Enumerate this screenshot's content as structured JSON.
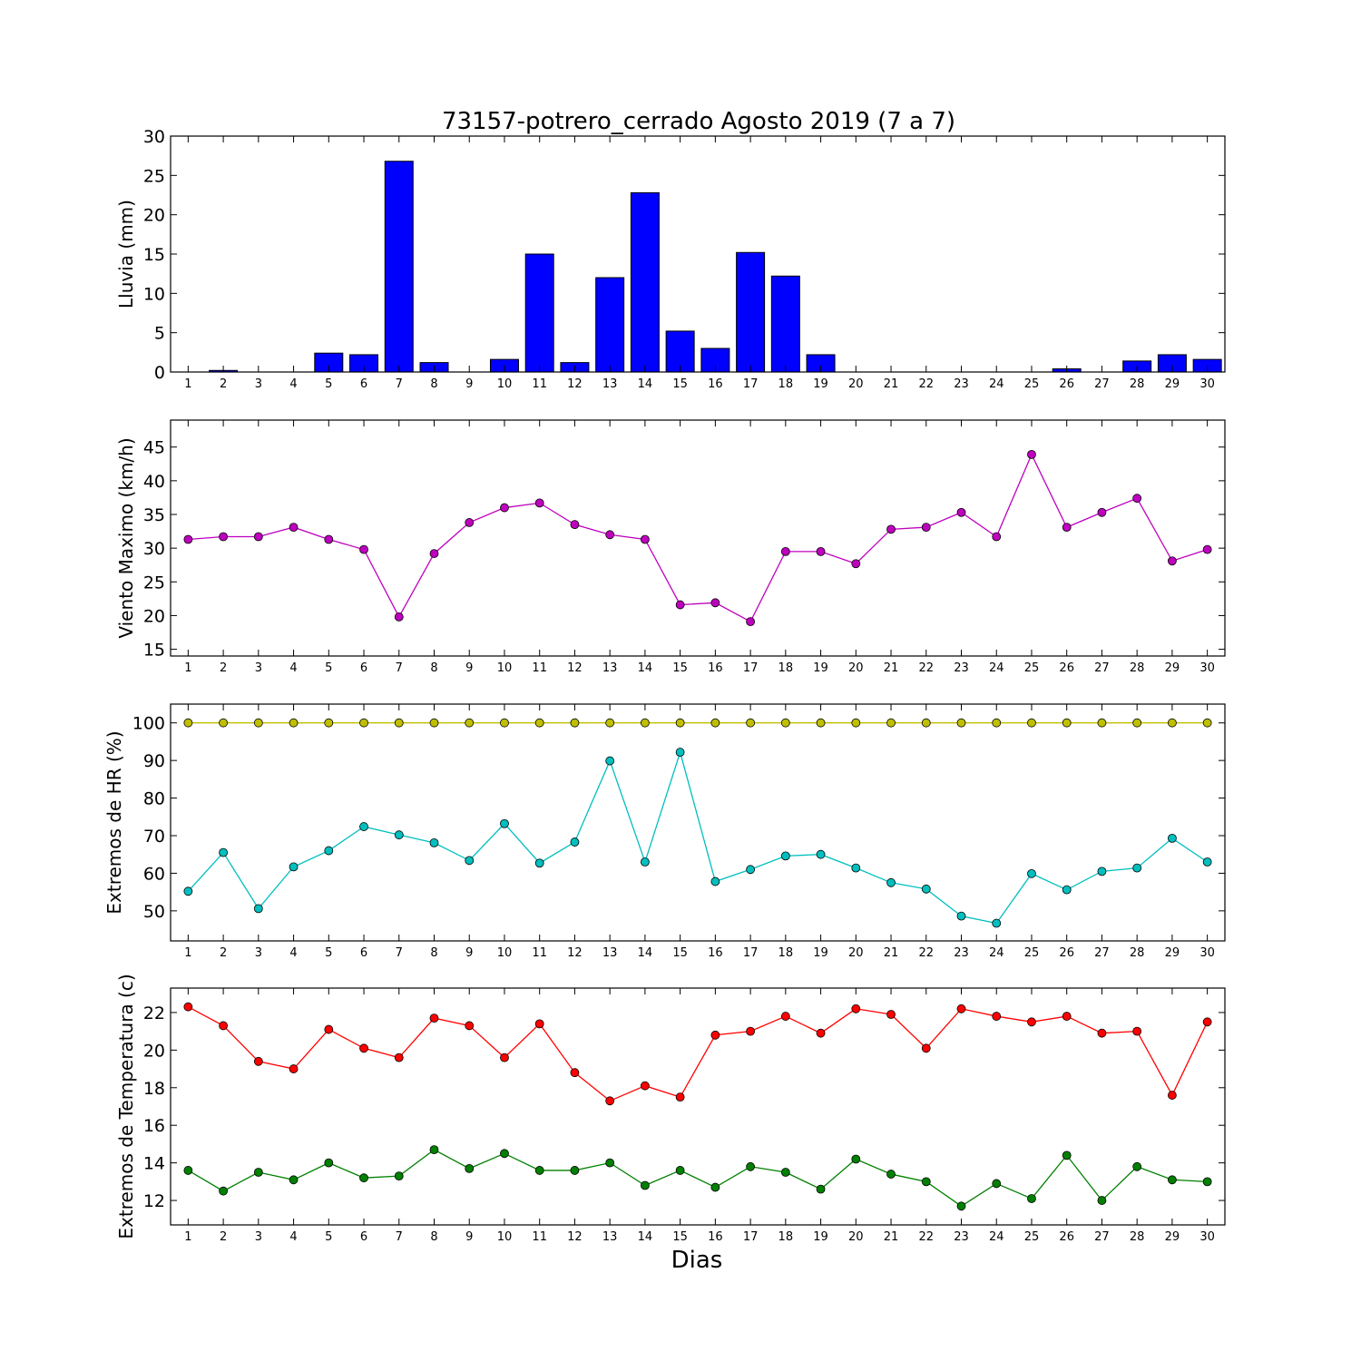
{
  "figure": {
    "title": "73157-potrero_cerrado Agosto 2019  (7 a 7)",
    "xlabel": "Dias"
  },
  "chart_data": [
    {
      "type": "bar",
      "ylabel": "Lluvia (mm)",
      "categories": [
        1,
        2,
        3,
        4,
        5,
        6,
        7,
        8,
        9,
        10,
        11,
        12,
        13,
        14,
        15,
        16,
        17,
        18,
        19,
        20,
        21,
        22,
        23,
        24,
        25,
        26,
        27,
        28,
        29,
        30
      ],
      "xlim": [
        0.5,
        30.5
      ],
      "ylim": [
        0,
        30
      ],
      "yticks": [
        0,
        5,
        10,
        15,
        20,
        25,
        30
      ],
      "series": [
        {
          "color": "#0000ff",
          "values": [
            0.0,
            0.2,
            0.0,
            0.0,
            2.4,
            2.2,
            26.8,
            1.2,
            0.0,
            1.6,
            15.0,
            1.2,
            12.0,
            22.8,
            5.2,
            3.0,
            15.2,
            12.2,
            2.2,
            0.0,
            0.0,
            0.0,
            0.0,
            0.0,
            0.0,
            0.4,
            0.0,
            1.4,
            2.2,
            1.6
          ]
        }
      ]
    },
    {
      "type": "line",
      "ylabel": "Viento Maximo (km/h)",
      "x": [
        1,
        2,
        3,
        4,
        5,
        6,
        7,
        8,
        9,
        10,
        11,
        12,
        13,
        14,
        15,
        16,
        17,
        18,
        19,
        20,
        21,
        22,
        23,
        24,
        25,
        26,
        27,
        28,
        29,
        30
      ],
      "xlim": [
        0.5,
        30.5
      ],
      "ylim": [
        14,
        49
      ],
      "yticks": [
        15,
        20,
        25,
        30,
        35,
        40,
        45
      ],
      "series": [
        {
          "color": "#bf00bf",
          "values": [
            31.3,
            31.7,
            31.7,
            33.1,
            31.3,
            29.8,
            19.8,
            29.2,
            33.8,
            36.0,
            36.7,
            33.5,
            32.0,
            31.3,
            21.6,
            21.9,
            19.1,
            29.5,
            29.5,
            27.7,
            32.8,
            33.1,
            35.3,
            31.7,
            43.9,
            33.1,
            35.3,
            37.4,
            28.1,
            29.8
          ]
        }
      ]
    },
    {
      "type": "line",
      "ylabel": "Extremos de HR (%)",
      "x": [
        1,
        2,
        3,
        4,
        5,
        6,
        7,
        8,
        9,
        10,
        11,
        12,
        13,
        14,
        15,
        16,
        17,
        18,
        19,
        20,
        21,
        22,
        23,
        24,
        25,
        26,
        27,
        28,
        29,
        30
      ],
      "xlim": [
        0.5,
        30.5
      ],
      "ylim": [
        42,
        105
      ],
      "yticks": [
        50,
        60,
        70,
        80,
        90,
        100
      ],
      "series": [
        {
          "color": "#bfbf00",
          "values": [
            100,
            100,
            100,
            100,
            100,
            100,
            100,
            100,
            100,
            100,
            100,
            100,
            100,
            100,
            100,
            100,
            100,
            100,
            100,
            100,
            100,
            100,
            100,
            100,
            100,
            100,
            100,
            100,
            100,
            100
          ]
        },
        {
          "color": "#00bfbf",
          "values": [
            55.2,
            65.5,
            50.6,
            61.7,
            66.0,
            72.4,
            70.2,
            68.1,
            63.4,
            73.2,
            62.7,
            68.3,
            89.9,
            63.0,
            92.2,
            57.8,
            61.0,
            64.6,
            65.0,
            61.4,
            57.5,
            55.8,
            48.6,
            46.7,
            59.9,
            55.6,
            60.5,
            61.4,
            69.3,
            63.0
          ]
        }
      ]
    },
    {
      "type": "line",
      "ylabel": "Extremos de Temperatura (c)",
      "x": [
        1,
        2,
        3,
        4,
        5,
        6,
        7,
        8,
        9,
        10,
        11,
        12,
        13,
        14,
        15,
        16,
        17,
        18,
        19,
        20,
        21,
        22,
        23,
        24,
        25,
        26,
        27,
        28,
        29,
        30
      ],
      "xlim": [
        0.5,
        30.5
      ],
      "ylim": [
        10.7,
        23.3
      ],
      "yticks": [
        12,
        14,
        16,
        18,
        20,
        22
      ],
      "series": [
        {
          "color": "#ff0000",
          "values": [
            22.3,
            21.3,
            19.4,
            19.0,
            21.1,
            20.1,
            19.6,
            21.7,
            21.3,
            19.6,
            21.4,
            18.8,
            17.3,
            18.1,
            17.5,
            20.8,
            21.0,
            21.8,
            20.9,
            22.2,
            21.9,
            20.1,
            22.2,
            21.8,
            21.5,
            21.8,
            20.9,
            21.0,
            17.6,
            21.5
          ]
        },
        {
          "color": "#008000",
          "values": [
            13.6,
            12.5,
            13.5,
            13.1,
            14.0,
            13.2,
            13.3,
            14.7,
            13.7,
            14.5,
            13.6,
            13.6,
            14.0,
            12.8,
            13.6,
            12.7,
            13.8,
            13.5,
            12.6,
            14.2,
            13.4,
            13.0,
            11.7,
            12.9,
            12.1,
            14.4,
            12.0,
            13.8,
            13.1,
            13.0
          ]
        }
      ]
    }
  ]
}
